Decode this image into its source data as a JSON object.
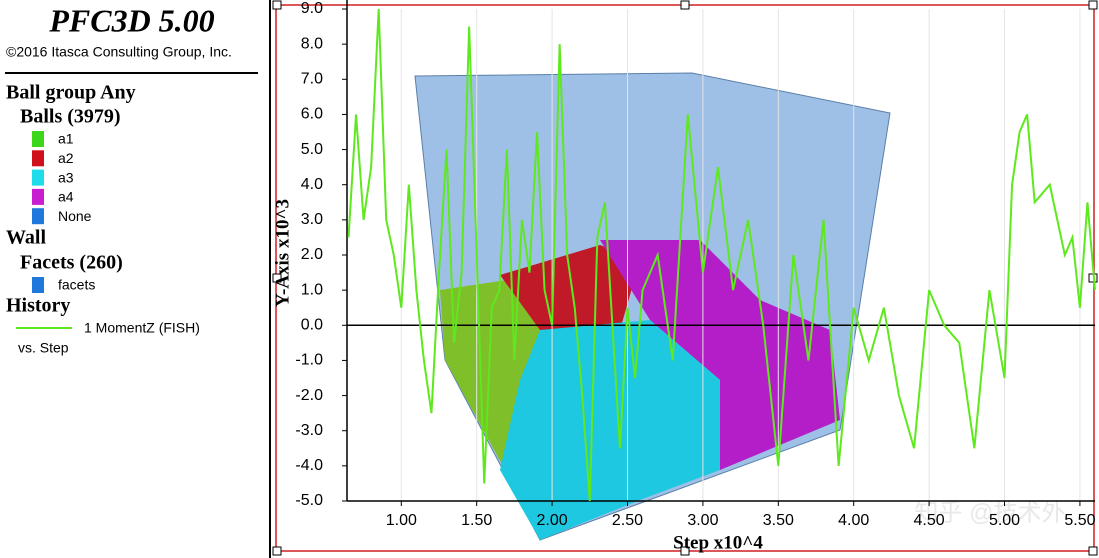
{
  "legend_panel": {
    "title": "PFC3D 5.00",
    "copyright": "©2016 Itasca Consulting Group, Inc.",
    "ball_group": "Ball group Any",
    "balls": "Balls (3979)",
    "ball_items": [
      {
        "label": "a1",
        "color": "#3cd61c"
      },
      {
        "label": "a2",
        "color": "#d0101a"
      },
      {
        "label": "a3",
        "color": "#1fdcea"
      },
      {
        "label": "a4",
        "color": "#c81ed0"
      },
      {
        "label": "None",
        "color": "#1f78dc"
      }
    ],
    "wall": "Wall",
    "facets": "Facets (260)",
    "facet_items": [
      {
        "label": "facets",
        "color": "#1f78dc"
      }
    ],
    "history": "History",
    "vs": "vs. Step"
  },
  "watermark": "知乎 @技术外",
  "chart_data": {
    "type": "line",
    "x_label": "Step x10^4",
    "y_label": "Y-Axis x10^3",
    "x": [
      0.65,
      0.7,
      0.75,
      0.8,
      0.85,
      0.9,
      0.95,
      1.0,
      1.05,
      1.1,
      1.15,
      1.2,
      1.25,
      1.3,
      1.35,
      1.4,
      1.45,
      1.5,
      1.55,
      1.6,
      1.65,
      1.7,
      1.75,
      1.8,
      1.85,
      1.9,
      1.95,
      2.0,
      2.05,
      2.1,
      2.15,
      2.2,
      2.25,
      2.3,
      2.35,
      2.4,
      2.45,
      2.5,
      2.55,
      2.6,
      2.7,
      2.8,
      2.9,
      3.0,
      3.1,
      3.2,
      3.3,
      3.4,
      3.5,
      3.6,
      3.7,
      3.8,
      3.9,
      4.0,
      4.1,
      4.2,
      4.3,
      4.4,
      4.5,
      4.6,
      4.7,
      4.8,
      4.9,
      5.0,
      5.05,
      5.1,
      5.15,
      5.2,
      5.3,
      5.4,
      5.45,
      5.5,
      5.55,
      5.6
    ],
    "series": [
      {
        "name": "1 MomentZ (FISH)",
        "color": "#5ee81e",
        "values": [
          2.5,
          6.0,
          3.0,
          4.5,
          9.0,
          3.0,
          2.0,
          0.5,
          4.0,
          1.0,
          -1.0,
          -2.5,
          1.5,
          5.0,
          -0.5,
          1.5,
          8.5,
          2.0,
          -4.5,
          0.5,
          1.0,
          5.0,
          -1.0,
          3.0,
          1.5,
          5.5,
          1.0,
          0.0,
          8.0,
          2.0,
          0.5,
          -2.0,
          -5.0,
          2.5,
          3.5,
          0.0,
          -3.5,
          0.5,
          -1.5,
          1.0,
          2.0,
          -1.0,
          6.0,
          1.5,
          4.5,
          1.0,
          3.0,
          0.0,
          -4.0,
          2.0,
          -1.0,
          3.0,
          -4.0,
          0.5,
          -1.0,
          0.5,
          -2.0,
          -3.5,
          1.0,
          0.0,
          -0.5,
          -3.5,
          1.0,
          -1.5,
          4.0,
          5.5,
          6.0,
          3.5,
          4.0,
          2.0,
          2.5,
          0.5,
          3.5,
          1.0
        ]
      }
    ],
    "xlim": [
      0.64,
      5.6
    ],
    "ylim": [
      -5,
      9
    ],
    "xticks": [
      {
        "value": 1,
        "label": "1.00"
      },
      {
        "value": 1.5,
        "label": "1.50"
      },
      {
        "value": 2,
        "label": "2.00"
      },
      {
        "value": 2.5,
        "label": "2.50"
      },
      {
        "value": 3,
        "label": "3.00"
      },
      {
        "value": 3.5,
        "label": "3.50"
      },
      {
        "value": 4,
        "label": "4.00"
      },
      {
        "value": 4.5,
        "label": "4.50"
      },
      {
        "value": 5,
        "label": "5.00"
      },
      {
        "value": 5.5,
        "label": "5.50"
      }
    ],
    "yticks": [
      {
        "value": 9,
        "label": "9.0"
      },
      {
        "value": 8,
        "label": "8.0"
      },
      {
        "value": 7,
        "label": "7.0"
      },
      {
        "value": 6,
        "label": "6.0"
      },
      {
        "value": 5,
        "label": "5.0"
      },
      {
        "value": 4,
        "label": "4.0"
      },
      {
        "value": 3,
        "label": "3.0"
      },
      {
        "value": 2,
        "label": "2.0"
      },
      {
        "value": 1,
        "label": "1.0"
      },
      {
        "value": 0,
        "label": "0.0"
      },
      {
        "value": -1,
        "label": "-1.0"
      },
      {
        "value": -2,
        "label": "-2.0"
      },
      {
        "value": -3,
        "label": "-3.0"
      },
      {
        "value": -4,
        "label": "-4.0"
      },
      {
        "value": -5,
        "label": "-5.0"
      }
    ],
    "grid": true
  }
}
